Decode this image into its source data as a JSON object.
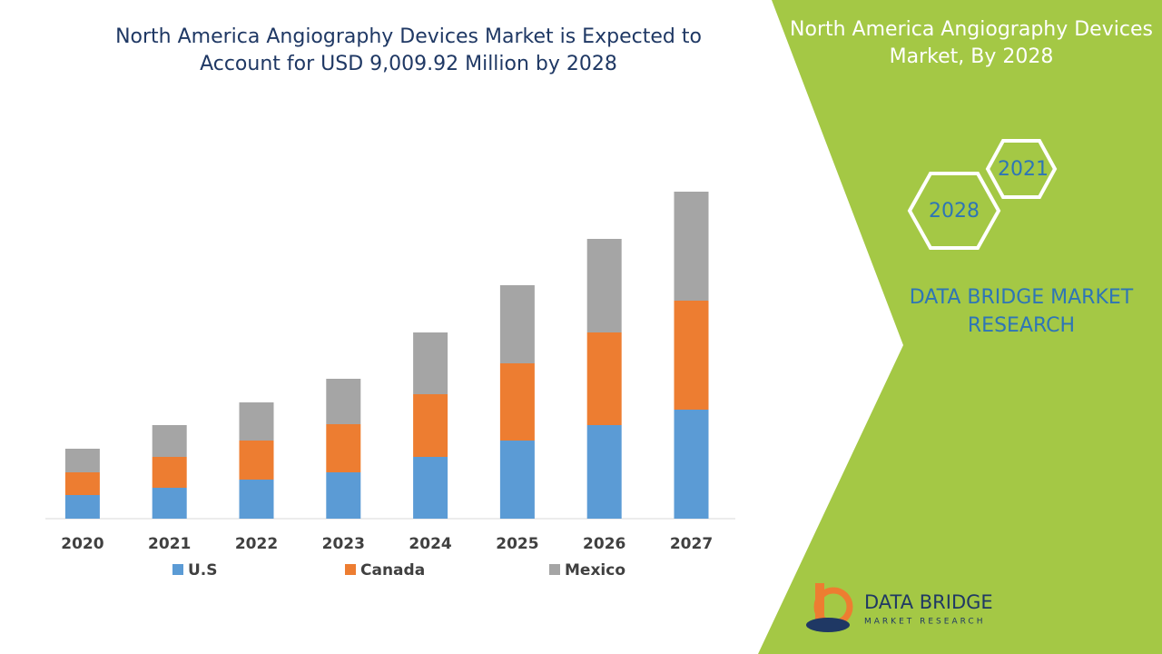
{
  "chart_data": {
    "type": "bar",
    "stacked": true,
    "title": "North America Angiography Devices Market is Expected to Account for USD 9,009.92 Million by 2028",
    "categories": [
      "2020",
      "2021",
      "2022",
      "2023",
      "2024",
      "2025",
      "2026",
      "2027"
    ],
    "series": [
      {
        "name": "U.S",
        "color": "#5b9bd5",
        "values": [
          26,
          34,
          43,
          51,
          68,
          86,
          103,
          120
        ]
      },
      {
        "name": "Canada",
        "color": "#ed7d31",
        "values": [
          25,
          34,
          43,
          53,
          69,
          85,
          102,
          120
        ]
      },
      {
        "name": "Mexico",
        "color": "#a5a5a5",
        "values": [
          26,
          35,
          42,
          50,
          68,
          86,
          103,
          120
        ]
      }
    ]
  },
  "side_panel": {
    "title": "North America Angiography Devices Market, By 2028",
    "badges": [
      "2021",
      "2028"
    ],
    "brand": "DATA BRIDGE MARKET RESEARCH"
  },
  "logo": {
    "name": "DATA BRIDGE",
    "tagline": "MARKET RESEARCH"
  }
}
